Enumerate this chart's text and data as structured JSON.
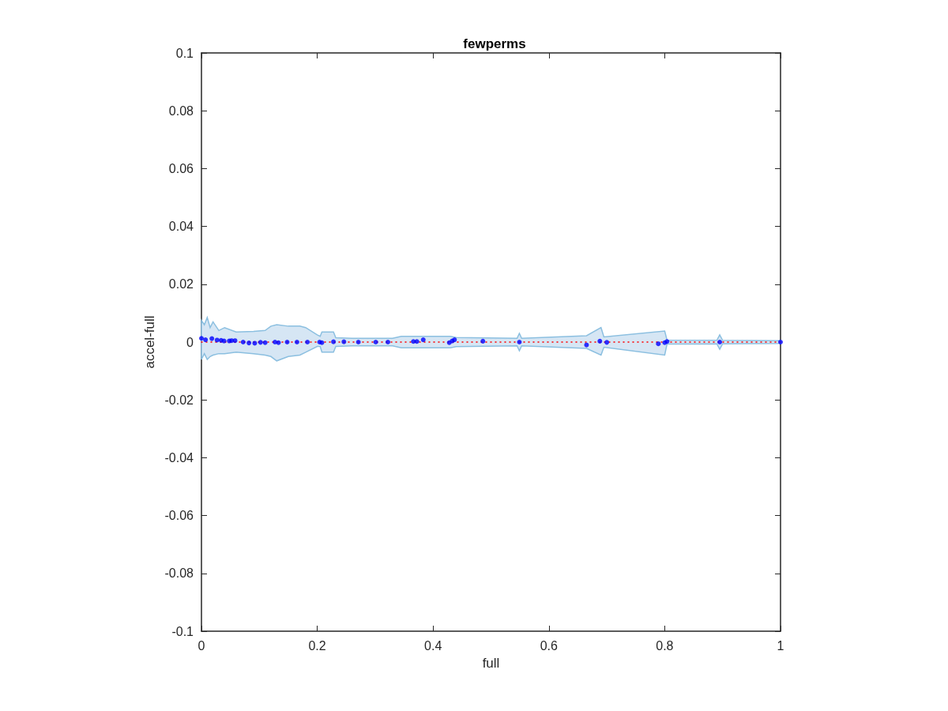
{
  "chart_data": {
    "type": "scatter",
    "title": "fewperms",
    "xlabel": "full",
    "ylabel": "accel-full",
    "xlim": [
      0,
      1
    ],
    "xticks": [
      0,
      0.2,
      0.4,
      0.6,
      0.8,
      1
    ],
    "ylim": [
      -0.1,
      0.1
    ],
    "yticks": [
      -0.1,
      -0.08,
      -0.06,
      -0.04,
      -0.02,
      0,
      0.02,
      0.04,
      0.06,
      0.08,
      0.1
    ],
    "grid": false,
    "legend": false,
    "marker": "circle",
    "series": [
      {
        "type": "line",
        "color": "#ff0000",
        "line_style": "dotted",
        "marker": "none",
        "x": [
          0,
          0.005,
          0.01,
          0.015,
          0.02,
          0.03,
          0.04,
          0.06,
          0.09,
          0.11,
          0.12,
          0.13,
          0.15,
          0.17,
          0.18,
          0.2,
          0.205,
          0.208,
          0.228,
          0.232,
          0.26,
          0.33,
          0.345,
          0.43,
          0.44,
          0.545,
          0.549,
          0.553,
          0.665,
          0.69,
          0.695,
          0.8,
          0.804,
          0.89,
          0.895,
          0.9,
          1
        ],
        "values": [
          0,
          0,
          0,
          0,
          0,
          0,
          0,
          0,
          0,
          0,
          0,
          0,
          0,
          0,
          0,
          0,
          0,
          0,
          0,
          0,
          0,
          0,
          0,
          0,
          0,
          0,
          0,
          0,
          0,
          0,
          0,
          0,
          0,
          0,
          0,
          0,
          0
        ],
        "upper": [
          0.0075,
          0.006,
          0.0085,
          0.005,
          0.007,
          0.004,
          0.005,
          0.0035,
          0.0037,
          0.004,
          0.0055,
          0.006,
          0.0055,
          0.0055,
          0.005,
          0.0025,
          0.002,
          0.0035,
          0.0035,
          0.0015,
          0.0013,
          0.0013,
          0.002,
          0.002,
          0.0016,
          0.0013,
          0.003,
          0.0013,
          0.0022,
          0.005,
          0.0018,
          0.0038,
          0.0007,
          0.0006,
          0.0025,
          0.0006,
          0.0005
        ],
        "lower": [
          -0.006,
          -0.004,
          -0.006,
          -0.005,
          -0.0045,
          -0.004,
          -0.004,
          -0.0035,
          -0.004,
          -0.0045,
          -0.005,
          -0.0065,
          -0.005,
          -0.0045,
          -0.0035,
          -0.0015,
          -0.0015,
          -0.0035,
          -0.0035,
          -0.0015,
          -0.0013,
          -0.0013,
          -0.002,
          -0.002,
          -0.0016,
          -0.0013,
          -0.003,
          -0.0013,
          -0.0022,
          -0.0045,
          -0.0018,
          -0.0045,
          -0.0007,
          -0.0006,
          -0.0025,
          -0.0006,
          -0.0005
        ]
      },
      {
        "color": "#0000ff",
        "x": [
          0,
          0.007,
          0.018,
          0.027,
          0.034,
          0.039,
          0.048,
          0.052,
          0.058,
          0.072,
          0.082,
          0.092,
          0.102,
          0.11,
          0.127,
          0.133,
          0.148,
          0.165,
          0.183,
          0.204,
          0.208,
          0.228,
          0.246,
          0.271,
          0.301,
          0.322,
          0.366,
          0.372,
          0.383,
          0.428,
          0.433,
          0.437,
          0.486,
          0.549,
          0.665,
          0.688,
          0.7,
          0.789,
          0.8,
          0.804,
          0.895,
          1
        ],
        "values": [
          0.0013,
          0.0008,
          0.0012,
          0.0007,
          0.0006,
          0.0004,
          0.0004,
          0.0005,
          0.0005,
          0,
          -0.0003,
          -0.0004,
          -0.0001,
          -0.0002,
          0,
          -0.0002,
          0,
          0,
          0,
          0,
          -0.0002,
          0.0001,
          0.0001,
          0,
          0,
          0,
          0.0002,
          0.0002,
          0.0008,
          -0.0002,
          0.0004,
          0.0008,
          0.0003,
          0,
          -0.001,
          0.0003,
          -0.0001,
          -0.0006,
          -0.0002,
          0.0002,
          0,
          0
        ]
      }
    ]
  }
}
